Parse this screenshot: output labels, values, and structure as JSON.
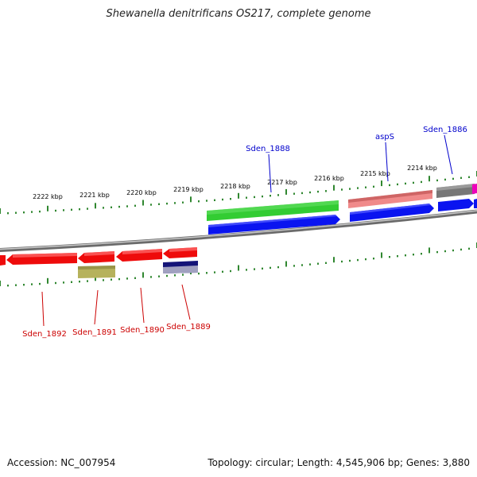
{
  "title": "Shewanella denitrificans OS217, complete genome",
  "footer": {
    "accession": "Accession: NC_007954",
    "summary": "Topology: circular; Length: 4,545,906 bp; Genes: 3,880"
  },
  "scale_ticks": [
    "2222 kbp",
    "2221 kbp",
    "2220 kbp",
    "2219 kbp",
    "2218 kbp",
    "2217 kbp",
    "2216 kbp",
    "2215 kbp",
    "2214 kbp"
  ],
  "gene_labels_top": [
    "Sden_1888",
    "aspS",
    "Sden_1886"
  ],
  "gene_labels_bottom": [
    "Sden_1892",
    "Sden_1891",
    "Sden_1890",
    "Sden_1889"
  ],
  "colors": {
    "forward_label": "#0000cc",
    "reverse_label": "#cc0000",
    "tick": "#1a7a1a",
    "backbone": "#8a8a8a",
    "gene_blue": "#0a14f0",
    "gene_red": "#ee0b0b",
    "gene_green": "#33cc33",
    "gene_pink": "#f08a8a",
    "gene_gray": "#777777",
    "gene_magenta": "#ee00bb",
    "gene_olive": "#b6b25c",
    "gene_navy": "#141478"
  }
}
